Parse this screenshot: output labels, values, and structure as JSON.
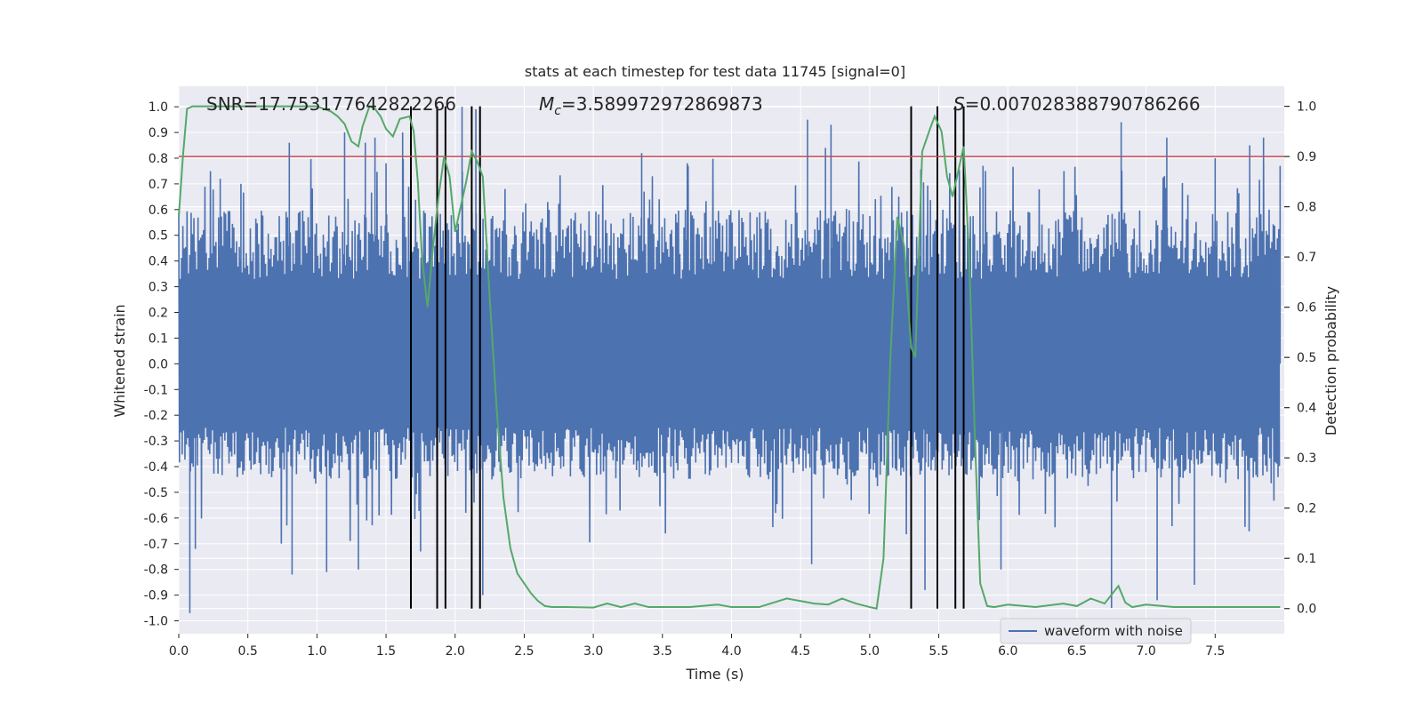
{
  "chart_data": {
    "type": "line",
    "title": "stats at each timestep for test data 11745 [signal=0]",
    "xlabel": "Time (s)",
    "ylabel_left": "Whitened strain",
    "ylabel_right": "Detection probability",
    "xlim": [
      0.0,
      8.0
    ],
    "ylim_left": [
      -1.05,
      1.08
    ],
    "ylim_right": [
      -0.05,
      1.04
    ],
    "x_ticks": [
      "0.0",
      "0.5",
      "1.0",
      "1.5",
      "2.0",
      "2.5",
      "3.0",
      "3.5",
      "4.0",
      "4.5",
      "5.0",
      "5.5",
      "6.0",
      "6.5",
      "7.0",
      "7.5"
    ],
    "y_left_ticks": [
      "1.0",
      "0.9",
      "0.8",
      "0.7",
      "0.6",
      "0.5",
      "0.4",
      "0.3",
      "0.2",
      "0.1",
      "0.0",
      "-0.1",
      "-0.2",
      "-0.3",
      "-0.4",
      "-0.5",
      "-0.6",
      "-0.7",
      "-0.8",
      "-0.9",
      "-1.0"
    ],
    "y_right_ticks": [
      "1.0",
      "0.9",
      "0.8",
      "0.7",
      "0.6",
      "0.5",
      "0.4",
      "0.3",
      "0.2",
      "0.1",
      "0.0"
    ],
    "annotations": {
      "snr": "SNR=17.753177642822266",
      "mc_prefix": "M",
      "mc_sub": "c",
      "mc_value": "=3.589972972869873",
      "s_symbol": "S",
      "s_value": "=0.007028388790786266"
    },
    "legend": {
      "label": "waveform with noise",
      "placement": "bottom-right"
    },
    "grid": true,
    "colors": {
      "waveform": "#4c72b0",
      "probability": "#55a868",
      "threshold": "#c44e52",
      "markers": "#000000",
      "axes_bg": "#eaeaf2",
      "grid": "#ffffff"
    },
    "waveform_envelope": {
      "description_units": "strain",
      "typical_amplitude": [
        -0.45,
        0.6
      ],
      "peak_max": 1.0,
      "peak_min": -0.97
    },
    "threshold_probability": 0.9,
    "vertical_markers_time": [
      1.68,
      1.87,
      1.93,
      2.12,
      2.18,
      5.3,
      5.49,
      5.62,
      5.68
    ],
    "series": [
      {
        "name": "waveform with noise",
        "axis": "left",
        "peaks_x": [
          0.08,
          0.12,
          0.3,
          0.45,
          0.8,
          0.82,
          1.07,
          1.2,
          1.3,
          1.35,
          1.42,
          1.5,
          1.62,
          1.75,
          2.05,
          2.15,
          2.2,
          3.35,
          3.68,
          4.55,
          4.58,
          4.68,
          4.72,
          5.4,
          5.82,
          5.95,
          6.75,
          6.82,
          7.08,
          7.15,
          7.35,
          7.5,
          7.75,
          7.85,
          7.97
        ],
        "peaks_y": [
          -0.97,
          -0.72,
          0.72,
          0.7,
          0.86,
          -0.82,
          -0.81,
          0.9,
          -0.8,
          0.86,
          0.88,
          0.78,
          0.9,
          -0.73,
          1.0,
          0.99,
          -0.9,
          0.82,
          0.78,
          0.95,
          -0.78,
          0.84,
          0.93,
          -0.88,
          0.77,
          -0.8,
          -0.95,
          0.94,
          -0.92,
          0.88,
          -0.86,
          0.8,
          0.85,
          0.88,
          0.77
        ]
      },
      {
        "axis": "right",
        "x": [
          0.0,
          0.03,
          0.06,
          0.1,
          0.2,
          0.4,
          0.6,
          0.8,
          1.0,
          1.1,
          1.15,
          1.2,
          1.25,
          1.3,
          1.33,
          1.38,
          1.42,
          1.46,
          1.5,
          1.55,
          1.6,
          1.67,
          1.7,
          1.73,
          1.76,
          1.8,
          1.84,
          1.88,
          1.92,
          1.96,
          2.0,
          2.04,
          2.08,
          2.12,
          2.16,
          2.2,
          2.25,
          2.3,
          2.35,
          2.4,
          2.45,
          2.5,
          2.55,
          2.6,
          2.65,
          2.7,
          2.8,
          3.0,
          3.1,
          3.2,
          3.3,
          3.4,
          3.5,
          3.7,
          3.9,
          4.0,
          4.2,
          4.4,
          4.5,
          4.6,
          4.7,
          4.8,
          4.9,
          5.0,
          5.05,
          5.1,
          5.15,
          5.2,
          5.25,
          5.3,
          5.33,
          5.38,
          5.43,
          5.47,
          5.52,
          5.56,
          5.6,
          5.64,
          5.68,
          5.72,
          5.76,
          5.8,
          5.85,
          5.9,
          6.0,
          6.2,
          6.4,
          6.5,
          6.6,
          6.7,
          6.8,
          6.85,
          6.9,
          7.0,
          7.2,
          7.5,
          7.7,
          7.97
        ],
        "y": [
          0.78,
          0.9,
          0.995,
          1.0,
          1.0,
          1.0,
          1.0,
          1.0,
          1.0,
          0.99,
          0.98,
          0.965,
          0.93,
          0.92,
          0.96,
          1.0,
          0.995,
          0.98,
          0.955,
          0.94,
          0.975,
          0.98,
          0.95,
          0.85,
          0.7,
          0.6,
          0.72,
          0.82,
          0.9,
          0.86,
          0.75,
          0.8,
          0.85,
          0.91,
          0.89,
          0.86,
          0.62,
          0.4,
          0.22,
          0.12,
          0.07,
          0.05,
          0.03,
          0.015,
          0.005,
          0.003,
          0.003,
          0.002,
          0.01,
          0.003,
          0.01,
          0.003,
          0.003,
          0.003,
          0.008,
          0.003,
          0.003,
          0.02,
          0.015,
          0.01,
          0.008,
          0.02,
          0.01,
          0.003,
          0.0,
          0.1,
          0.5,
          0.78,
          0.72,
          0.52,
          0.5,
          0.91,
          0.95,
          0.98,
          0.95,
          0.86,
          0.82,
          0.87,
          0.92,
          0.7,
          0.35,
          0.05,
          0.005,
          0.003,
          0.008,
          0.003,
          0.01,
          0.005,
          0.02,
          0.01,
          0.045,
          0.012,
          0.003,
          0.008,
          0.003,
          0.003,
          0.003,
          0.003
        ]
      }
    ]
  }
}
